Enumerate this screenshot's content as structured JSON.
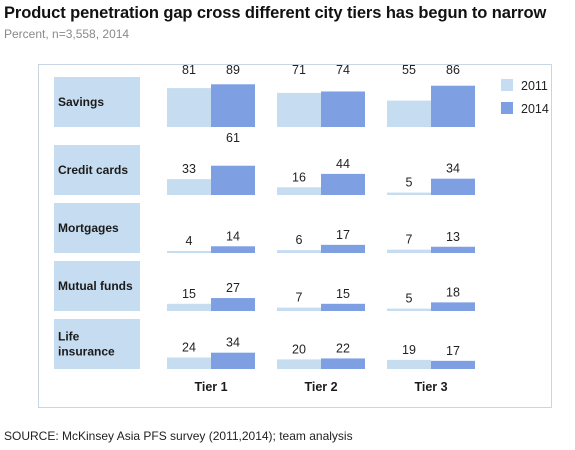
{
  "title": "Product penetration gap cross different city tiers has begun to narrow",
  "subtitle": "Percent, n=3,558, 2014",
  "source": "SOURCE: McKinsey Asia PFS survey (2011,2014); team analysis",
  "colors": {
    "s2011": "#c6dcf0",
    "s2014": "#7f9fe3",
    "rowlabel": "#c6dcf0"
  },
  "chart_data": {
    "type": "bar",
    "title": "Product penetration gap cross different city tiers has begun to narrow",
    "subtitle": "Percent, n=3,558, 2014",
    "categories": [
      "Tier 1",
      "Tier 2",
      "Tier 3"
    ],
    "legend": {
      "position": "right",
      "entries": [
        "2011",
        "2014"
      ]
    },
    "ylim": [
      0,
      100
    ],
    "panels": [
      {
        "label": "Savings",
        "series": [
          {
            "name": "2011",
            "values": [
              81,
              71,
              55
            ]
          },
          {
            "name": "2014",
            "values": [
              89,
              74,
              86
            ]
          }
        ]
      },
      {
        "label": "Credit cards",
        "series": [
          {
            "name": "2011",
            "values": [
              33,
              16,
              5
            ]
          },
          {
            "name": "2014",
            "values": [
              61,
              44,
              34
            ]
          }
        ]
      },
      {
        "label": "Mortgages",
        "series": [
          {
            "name": "2011",
            "values": [
              4,
              6,
              7
            ]
          },
          {
            "name": "2014",
            "values": [
              14,
              17,
              13
            ]
          }
        ]
      },
      {
        "label": "Mutual funds",
        "series": [
          {
            "name": "2011",
            "values": [
              15,
              7,
              5
            ]
          },
          {
            "name": "2014",
            "values": [
              27,
              15,
              18
            ]
          }
        ]
      },
      {
        "label": "Life insurance",
        "series": [
          {
            "name": "2011",
            "values": [
              24,
              20,
              19
            ]
          },
          {
            "name": "2014",
            "values": [
              34,
              22,
              17
            ]
          }
        ]
      }
    ]
  }
}
